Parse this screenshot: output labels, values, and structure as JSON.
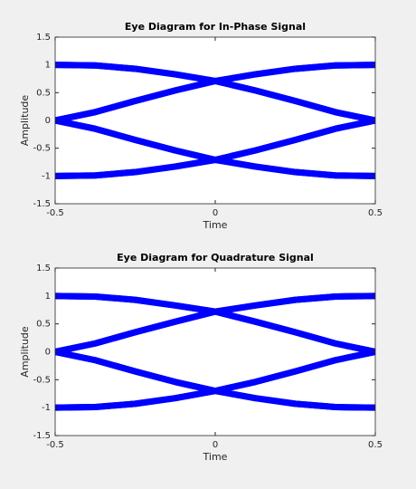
{
  "chart_data": [
    {
      "type": "line",
      "title": "Eye Diagram for In-Phase Signal",
      "x_label": "Time",
      "y_label": "Amplitude",
      "x": [
        -0.5,
        -0.375,
        -0.25,
        -0.125,
        0,
        0.125,
        0.25,
        0.375,
        0.5
      ],
      "xlim": [
        -0.5,
        0.5
      ],
      "xticks": [
        -0.5,
        0,
        0.5
      ],
      "ylim": [
        -1.5,
        1.5
      ],
      "yticks": [
        -1.5,
        -1,
        -0.5,
        0,
        0.5,
        1,
        1.5
      ],
      "grid": false,
      "series": [
        {
          "color": "#0000ff",
          "values": [
            1,
            0.99,
            0.93,
            0.83,
            0.71,
            0.83,
            0.93,
            0.99,
            1
          ]
        },
        {
          "color": "#0000ff",
          "values": [
            1,
            0.99,
            0.93,
            0.83,
            0.71,
            0.54,
            0.35,
            0.15,
            0
          ]
        },
        {
          "color": "#0000ff",
          "values": [
            0,
            0.15,
            0.35,
            0.54,
            0.71,
            0.83,
            0.93,
            0.99,
            1
          ]
        },
        {
          "color": "#0000ff",
          "values": [
            0,
            0.15,
            0.35,
            0.54,
            0.71,
            0.54,
            0.35,
            0.15,
            0
          ]
        },
        {
          "color": "#0000ff",
          "values": [
            -1,
            -0.99,
            -0.93,
            -0.83,
            -0.71,
            -0.83,
            -0.93,
            -0.99,
            -1
          ]
        },
        {
          "color": "#0000ff",
          "values": [
            -1,
            -0.99,
            -0.93,
            -0.83,
            -0.71,
            -0.54,
            -0.35,
            -0.15,
            0
          ]
        },
        {
          "color": "#0000ff",
          "values": [
            0,
            -0.15,
            -0.35,
            -0.54,
            -0.71,
            -0.83,
            -0.93,
            -0.99,
            -1
          ]
        },
        {
          "color": "#0000ff",
          "values": [
            0,
            -0.15,
            -0.35,
            -0.54,
            -0.71,
            -0.54,
            -0.35,
            -0.15,
            0
          ]
        }
      ]
    },
    {
      "type": "line",
      "title": "Eye Diagram for Quadrature Signal",
      "x_label": "Time",
      "y_label": "Amplitude",
      "x": [
        -0.5,
        -0.375,
        -0.25,
        -0.125,
        0,
        0.125,
        0.25,
        0.375,
        0.5
      ],
      "xlim": [
        -0.5,
        0.5
      ],
      "xticks": [
        -0.5,
        0,
        0.5
      ],
      "ylim": [
        -1.5,
        1.5
      ],
      "yticks": [
        -1.5,
        -1,
        -0.5,
        0,
        0.5,
        1,
        1.5
      ],
      "grid": false,
      "series": [
        {
          "color": "#0000ff",
          "values": [
            1,
            0.99,
            0.93,
            0.83,
            0.72,
            0.83,
            0.93,
            0.99,
            1
          ]
        },
        {
          "color": "#0000ff",
          "values": [
            1,
            0.99,
            0.93,
            0.83,
            0.72,
            0.54,
            0.35,
            0.15,
            0
          ]
        },
        {
          "color": "#0000ff",
          "values": [
            0,
            0.15,
            0.35,
            0.54,
            0.72,
            0.83,
            0.93,
            0.99,
            1
          ]
        },
        {
          "color": "#0000ff",
          "values": [
            0,
            0.15,
            0.35,
            0.54,
            0.72,
            0.54,
            0.35,
            0.15,
            0
          ]
        },
        {
          "color": "#0000ff",
          "values": [
            -1,
            -0.99,
            -0.93,
            -0.83,
            -0.7,
            -0.83,
            -0.93,
            -0.99,
            -1
          ]
        },
        {
          "color": "#0000ff",
          "values": [
            -1,
            -0.99,
            -0.93,
            -0.83,
            -0.7,
            -0.54,
            -0.35,
            -0.15,
            0
          ]
        },
        {
          "color": "#0000ff",
          "values": [
            0,
            -0.15,
            -0.35,
            -0.54,
            -0.7,
            -0.83,
            -0.93,
            -0.99,
            -1
          ]
        },
        {
          "color": "#0000ff",
          "values": [
            0,
            -0.15,
            -0.35,
            -0.54,
            -0.7,
            -0.54,
            -0.35,
            -0.15,
            0
          ]
        }
      ]
    }
  ]
}
